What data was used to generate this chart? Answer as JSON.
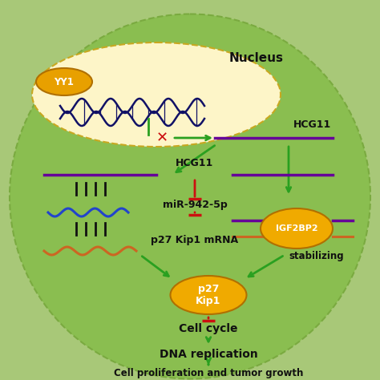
{
  "bg_color": "#a8c878",
  "cell_color": "#8abe50",
  "nucleus_color": "#fdf5c8",
  "yy1_color": "#e8a000",
  "igf_color": "#f0aa00",
  "p27_color": "#f0aa00",
  "green": "#2aa020",
  "red": "#cc1010",
  "purple": "#660099",
  "blue": "#2244cc",
  "orange": "#cc6622",
  "darkblue": "#111166",
  "black": "#111111",
  "nucleus_label": "Nucleus",
  "yy1_label": "YY1",
  "hcg11_nuc_label": "HCG11",
  "hcg11_cyt_label": "HCG11",
  "mir_label": "miR-942-5p",
  "p27mrna_label": "p27 Kip1 mRNA",
  "igf_label": "IGF2BP2",
  "stabilizing_label": "stabilizing",
  "p27kip1_label": "p27\nKip1",
  "cellcycle_label": "Cell cycle",
  "dna_label": "DNA replication",
  "tumor_label": "Cell proliferation and tumor growth"
}
